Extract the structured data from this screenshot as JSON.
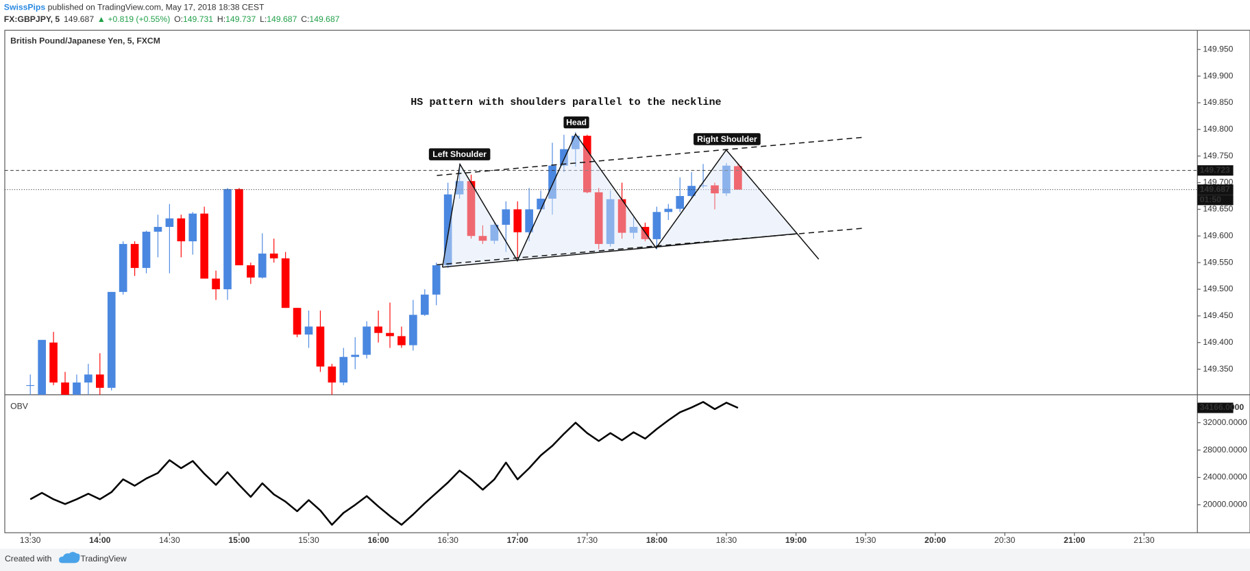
{
  "header": {
    "author": "SwissPips",
    "published": " published on TradingView.com, May 17, 2018 18:38 CEST",
    "symbol": "FX:GBPJPY, 5",
    "last": "149.687",
    "change": "+0.819 (+0.55%)",
    "open_label": "O:",
    "open": "149.731",
    "high_label": "H:",
    "high": "149.737",
    "low_label": "L:",
    "low": "149.687",
    "close_label": "C:",
    "close": "149.687"
  },
  "annotations": {
    "note": "HS pattern with shoulders parallel to the neckline",
    "left": "Left Shoulder",
    "head": "Head",
    "right": "Right Shoulder"
  },
  "footer": {
    "created": "Created with",
    "brand": "TradingView"
  },
  "chart_data": [
    {
      "type": "candlestick",
      "title": "British Pound/Japanese Yen, 5, FXCM",
      "x": [
        "13:30",
        "13:35",
        "13:40",
        "13:45",
        "13:50",
        "13:55",
        "14:00",
        "14:05",
        "14:10",
        "14:15",
        "14:20",
        "14:25",
        "14:30",
        "14:35",
        "14:40",
        "14:45",
        "14:50",
        "14:55",
        "15:00",
        "15:05",
        "15:10",
        "15:15",
        "15:20",
        "15:25",
        "15:30",
        "15:35",
        "15:40",
        "15:45",
        "15:50",
        "15:55",
        "16:00",
        "16:05",
        "16:10",
        "16:15",
        "16:20",
        "16:25",
        "16:30",
        "16:35",
        "16:40",
        "16:45",
        "16:50",
        "16:55",
        "17:00",
        "17:05",
        "17:10",
        "17:15",
        "17:20",
        "17:25",
        "17:30",
        "17:35",
        "17:40",
        "17:45",
        "17:50",
        "17:55",
        "18:00",
        "18:05",
        "18:10",
        "18:15",
        "18:20",
        "18:25",
        "18:30",
        "18:35"
      ],
      "open": [
        149.32,
        149.3,
        149.4,
        149.325,
        149.3,
        149.325,
        149.34,
        149.315,
        149.495,
        149.585,
        149.54,
        149.608,
        149.617,
        149.633,
        149.59,
        149.642,
        149.52,
        149.5,
        149.688,
        149.545,
        149.522,
        149.567,
        149.558,
        149.465,
        149.415,
        149.43,
        149.355,
        149.325,
        149.373,
        149.377,
        149.43,
        149.418,
        149.412,
        149.395,
        149.452,
        149.49,
        149.545,
        149.678,
        149.703,
        149.6,
        149.591,
        149.621,
        149.65,
        149.607,
        149.65,
        149.67,
        149.732,
        149.763,
        149.788,
        149.682,
        149.585,
        149.669,
        149.606,
        149.617,
        149.594,
        149.645,
        149.651,
        149.675,
        149.694,
        149.695,
        149.68,
        149.731
      ],
      "high": [
        149.34,
        149.405,
        149.42,
        149.345,
        149.34,
        149.36,
        149.38,
        149.495,
        149.59,
        149.59,
        149.61,
        149.64,
        149.66,
        149.64,
        149.645,
        149.655,
        149.535,
        149.69,
        149.69,
        149.55,
        149.605,
        149.595,
        149.57,
        149.465,
        149.46,
        149.46,
        149.36,
        149.39,
        149.41,
        149.44,
        149.46,
        149.475,
        149.43,
        149.48,
        149.5,
        149.55,
        149.7,
        149.735,
        149.715,
        149.62,
        149.625,
        149.665,
        149.665,
        149.69,
        149.685,
        149.775,
        149.79,
        149.795,
        149.79,
        149.69,
        149.685,
        149.7,
        149.635,
        149.625,
        149.655,
        149.66,
        149.71,
        149.72,
        149.735,
        149.7,
        149.737,
        149.737
      ],
      "low": [
        149.3,
        149.3,
        149.32,
        149.3,
        149.3,
        149.3,
        149.3,
        149.31,
        149.49,
        149.525,
        149.53,
        149.56,
        149.53,
        149.56,
        149.565,
        149.52,
        149.48,
        149.48,
        149.545,
        149.51,
        149.52,
        149.55,
        149.465,
        149.41,
        149.39,
        149.345,
        149.3,
        149.32,
        149.35,
        149.37,
        149.4,
        149.39,
        149.39,
        149.385,
        149.45,
        149.47,
        149.54,
        149.67,
        149.595,
        149.585,
        149.585,
        149.57,
        149.56,
        149.59,
        149.645,
        149.64,
        149.72,
        149.73,
        149.68,
        149.575,
        149.58,
        149.595,
        149.595,
        149.59,
        149.575,
        149.63,
        149.645,
        149.67,
        149.69,
        149.65,
        149.675,
        149.687
      ],
      "close": [
        149.32,
        149.405,
        149.325,
        149.3,
        149.325,
        149.34,
        149.315,
        149.495,
        149.585,
        149.54,
        149.608,
        149.617,
        149.633,
        149.59,
        149.642,
        149.52,
        149.5,
        149.688,
        149.545,
        149.522,
        149.567,
        149.558,
        149.465,
        149.415,
        149.43,
        149.355,
        149.325,
        149.373,
        149.377,
        149.43,
        149.418,
        149.412,
        149.395,
        149.452,
        149.49,
        149.545,
        149.678,
        149.703,
        149.6,
        149.591,
        149.621,
        149.65,
        149.607,
        149.65,
        149.67,
        149.732,
        149.763,
        149.788,
        149.682,
        149.585,
        149.669,
        149.606,
        149.617,
        149.594,
        149.645,
        149.651,
        149.675,
        149.694,
        149.695,
        149.68,
        149.732,
        149.687
      ],
      "up_color": "#4a87e0",
      "down_color": "#ff0000",
      "xlim": [
        "13:19",
        "21:53"
      ],
      "ylim": [
        149.302,
        149.986
      ],
      "yticks": [
        {
          "value": 149.35,
          "label": "149.350"
        },
        {
          "value": 149.4,
          "label": "149.400"
        },
        {
          "value": 149.45,
          "label": "149.450"
        },
        {
          "value": 149.5,
          "label": "149.500"
        },
        {
          "value": 149.55,
          "label": "149.550"
        },
        {
          "value": 149.6,
          "label": "149.600"
        },
        {
          "value": 149.65,
          "label": "149.650"
        },
        {
          "value": 149.7,
          "label": "149.700"
        },
        {
          "value": 149.75,
          "label": "149.750"
        },
        {
          "value": 149.8,
          "label": "149.800"
        },
        {
          "value": 149.85,
          "label": "149.850"
        },
        {
          "value": 149.9,
          "label": "149.900"
        },
        {
          "value": 149.95,
          "label": "149.950"
        }
      ],
      "price_lines": [
        {
          "value": 149.723,
          "style": "dashed"
        },
        {
          "value": 149.687,
          "style": "dotted"
        }
      ],
      "countdown": "01:50",
      "grid": false
    },
    {
      "type": "line",
      "title": "OBV",
      "color": "#000000",
      "x": [
        "13:30",
        "13:35",
        "13:40",
        "13:45",
        "13:50",
        "13:55",
        "14:00",
        "14:05",
        "14:10",
        "14:15",
        "14:20",
        "14:25",
        "14:30",
        "14:35",
        "14:40",
        "14:45",
        "14:50",
        "14:55",
        "15:00",
        "15:05",
        "15:10",
        "15:15",
        "15:20",
        "15:25",
        "15:30",
        "15:35",
        "15:40",
        "15:45",
        "15:50",
        "15:55",
        "16:00",
        "16:05",
        "16:10",
        "16:15",
        "16:20",
        "16:25",
        "16:30",
        "16:35",
        "16:40",
        "16:45",
        "16:50",
        "16:55",
        "17:00",
        "17:05",
        "17:10",
        "17:15",
        "17:20",
        "17:25",
        "17:30",
        "17:35",
        "17:40",
        "17:45",
        "17:50",
        "17:55",
        "18:00",
        "18:05",
        "18:10",
        "18:15",
        "18:20",
        "18:25",
        "18:30",
        "18:35"
      ],
      "values": [
        20810,
        21740,
        20810,
        20110,
        20810,
        21620,
        20810,
        21860,
        23720,
        22790,
        23840,
        24650,
        26520,
        25350,
        26400,
        24540,
        22910,
        24770,
        22910,
        21160,
        23140,
        21510,
        20460,
        19060,
        20690,
        19170,
        17080,
        18820,
        19990,
        21270,
        19760,
        18360,
        17080,
        18590,
        20220,
        21740,
        23260,
        25000,
        23720,
        22210,
        23720,
        26170,
        23720,
        25350,
        27220,
        28620,
        30370,
        32000,
        30480,
        29320,
        30480,
        29430,
        30600,
        29670,
        31070,
        32350,
        33520,
        34220,
        35030,
        33980,
        34920,
        34166
      ],
      "value_labels": [
        null,
        null,
        null,
        null,
        null,
        null,
        null,
        null,
        null,
        null,
        null,
        null,
        null,
        null,
        null,
        null,
        null,
        null,
        null,
        null,
        null,
        null,
        null,
        null,
        null,
        null,
        null,
        null,
        null,
        null,
        null,
        null,
        null,
        null,
        null,
        null,
        null,
        null,
        null,
        null,
        null,
        null,
        null,
        null,
        null,
        null,
        null,
        null,
        null,
        null,
        null,
        null,
        null,
        null,
        null,
        null,
        null,
        null,
        null,
        null,
        null,
        "34166.0000"
      ],
      "xlim": [
        "13:19",
        "21:53"
      ],
      "ylim": [
        15920,
        36080
      ],
      "yticks": [
        {
          "value": 20000,
          "label": "20000.0000"
        },
        {
          "value": 24000,
          "label": "24000.0000"
        },
        {
          "value": 28000,
          "label": "28000.0000"
        },
        {
          "value": 32000,
          "label": "32000.0000"
        }
      ],
      "xticks": [
        "13:30",
        "14:00",
        "14:30",
        "15:00",
        "15:30",
        "16:00",
        "16:30",
        "17:00",
        "17:30",
        "18:00",
        "18:30",
        "19:00",
        "19:30",
        "20:00",
        "20:30",
        "21:00",
        "21:30"
      ]
    }
  ]
}
